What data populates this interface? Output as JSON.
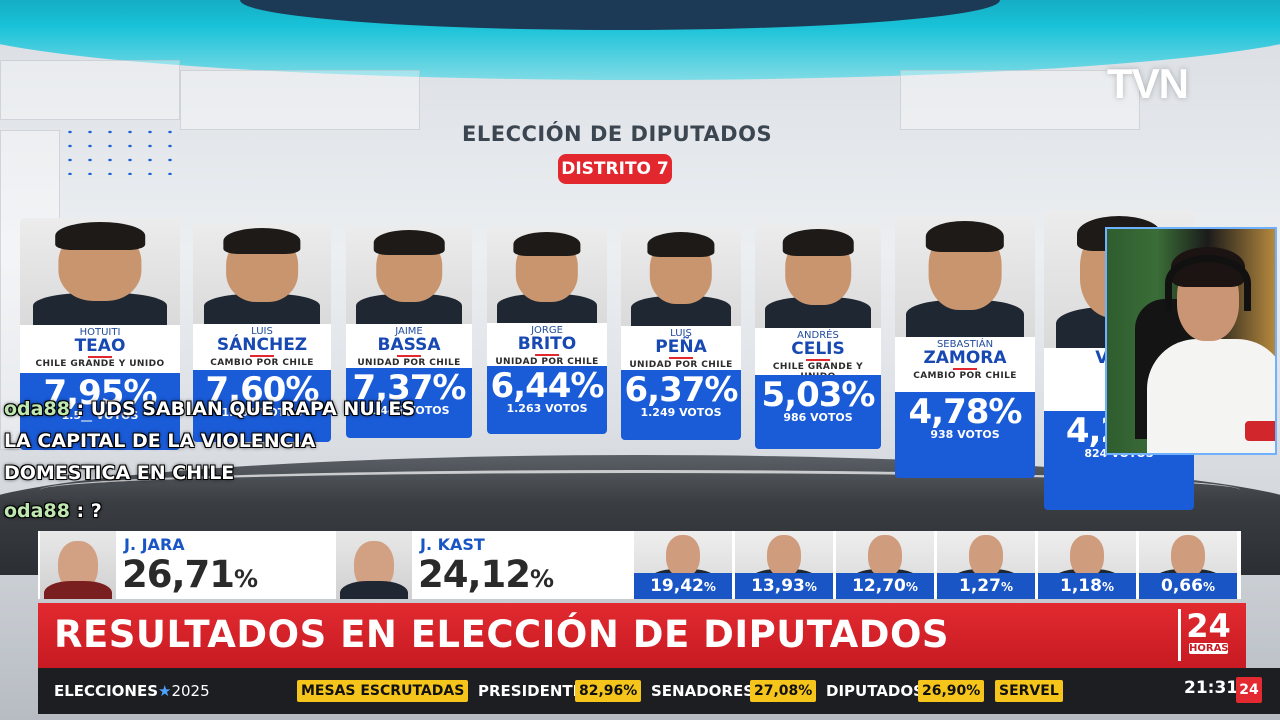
{
  "channel_logo": "TVN",
  "board": {
    "title": "ELECCIÓN DE DIPUTADOS",
    "district": "DISTRITO 7",
    "candidates": [
      {
        "first": "HOTUITI",
        "last": "TEAO",
        "party": "CHILE GRANDE Y UNIDO",
        "pct": "7,95%",
        "votes": "1.5__ VOTOS"
      },
      {
        "first": "LUIS",
        "last": "SÁNCHEZ",
        "party": "CAMBIO POR CHILE",
        "pct": "7,60%",
        "votes": "1.491 VOTOS"
      },
      {
        "first": "JAIME",
        "last": "BASSA",
        "party": "UNIDAD POR CHILE",
        "pct": "7,37%",
        "votes": "1.446 VOTOS"
      },
      {
        "first": "JORGE",
        "last": "BRITO",
        "party": "UNIDAD POR CHILE",
        "pct": "6,44%",
        "votes": "1.263 VOTOS"
      },
      {
        "first": "LUIS",
        "last": "PEÑA",
        "party": "UNIDAD POR CHILE",
        "pct": "6,37%",
        "votes": "1.249 VOTOS"
      },
      {
        "first": "ANDRÉS",
        "last": "CELIS",
        "party": "CHILE GRANDE Y UNIDO",
        "pct": "5,03%",
        "votes": "986 VOTOS"
      },
      {
        "first": "SEBASTIÁN",
        "last": "ZAMORA",
        "party": "CAMBIO POR CHILE",
        "pct": "4,78%",
        "votes": "938 VOTOS"
      },
      {
        "first": "",
        "last": "VALE",
        "party": "",
        "pct": "4,2_%",
        "votes": "824 VOTOS"
      }
    ]
  },
  "chat": [
    {
      "user": "oda88",
      "text": "UDS SABIAN QUE RAPA NUI ES"
    },
    {
      "user": "",
      "text": "LA CAPITAL DE LA VIOLENCIA"
    },
    {
      "user": "",
      "text": "DOMESTICA EN CHILE"
    },
    {
      "user": "oda88",
      "text": "?"
    }
  ],
  "presidential": {
    "main": [
      {
        "name": "J. JARA",
        "pct": "26,71",
        "unit": "%"
      },
      {
        "name": "J. KAST",
        "pct": "24,12",
        "unit": "%"
      }
    ],
    "others": [
      {
        "pct": "19,42",
        "unit": "%"
      },
      {
        "pct": "13,93",
        "unit": "%"
      },
      {
        "pct": "12,70",
        "unit": "%"
      },
      {
        "pct": "1,27",
        "unit": "%"
      },
      {
        "pct": "1,18",
        "unit": "%"
      },
      {
        "pct": "0,66",
        "unit": "%"
      }
    ]
  },
  "headline": "RESULTADOS EN ELECCIÓN DE DIPUTADOS",
  "headline_logo": {
    "number": "24",
    "label": "HORAS"
  },
  "ticker": {
    "brand": "ELECCIONES",
    "brand_star": "★",
    "year": "2025",
    "mesas": "MESAS ESCRUTADAS",
    "presidente_label": "PRESIDENTE",
    "presidente_value": "82,96%",
    "senadores_label": "SENADORES",
    "senadores_value": "27,08%",
    "diputados_label": "DIPUTADOS",
    "diputados_value": "26,90%",
    "source": "SERVEL",
    "time": "21:31",
    "bug": "24"
  },
  "colors": {
    "accent_red": "#e22a30",
    "card_blue": "#1a5bd8",
    "ticker_yellow": "#f5c51b"
  }
}
